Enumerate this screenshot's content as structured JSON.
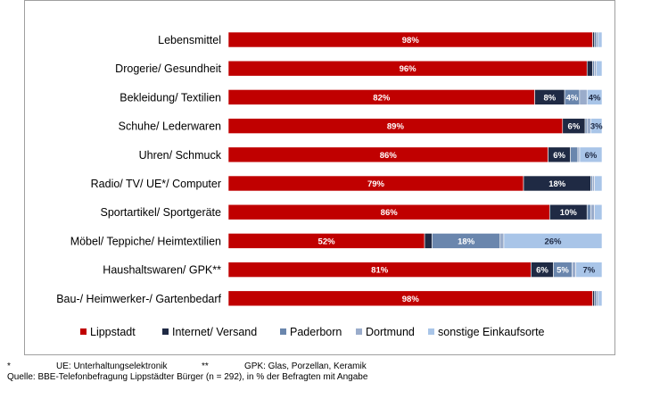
{
  "chart_data": {
    "type": "bar",
    "orientation": "horizontal",
    "stacked": true,
    "categories": [
      "Lebensmittel",
      "Drogerie/ Gesundheit",
      "Bekleidung/ Textilien",
      "Schuhe/ Lederwaren",
      "Uhren/ Schmuck",
      "Radio/ TV/ UE*/ Computer",
      "Sportartikel/ Sportgeräte",
      "Möbel/ Teppiche/ Heimtextilien",
      "Haushaltswaren/ GPK**",
      "Bau-/ Heimwerker-/ Gartenbedarf"
    ],
    "series": [
      {
        "name": "Lippstadt",
        "color": "#c00000",
        "values": [
          98,
          96,
          82,
          89,
          86,
          79,
          86,
          52,
          81,
          98
        ]
      },
      {
        "name": "Internet/ Versand",
        "color": "#1f2a44",
        "values": [
          0.5,
          1.5,
          8,
          6,
          6,
          18,
          10,
          2,
          6,
          0.5
        ]
      },
      {
        "name": "Paderborn",
        "color": "#6a86ad",
        "values": [
          0.5,
          0.5,
          4,
          0.5,
          2,
          0.5,
          1,
          18,
          5,
          0.5
        ]
      },
      {
        "name": "Dortmund",
        "color": "#9aaccb",
        "values": [
          0.5,
          0.5,
          2,
          1,
          0.5,
          0.5,
          1,
          1,
          1,
          0.5
        ]
      },
      {
        "name": "sonstige Einkaufsorte",
        "color": "#a9c5e8",
        "values": [
          1,
          1.5,
          4,
          3,
          6,
          2,
          2,
          26,
          7,
          1
        ]
      }
    ],
    "data_labels": [
      [
        "98%",
        "",
        "",
        "",
        ""
      ],
      [
        "96%",
        "",
        "",
        "",
        ""
      ],
      [
        "82%",
        "8%",
        "4%",
        "",
        "4%"
      ],
      [
        "89%",
        "6%",
        "",
        "",
        "3%"
      ],
      [
        "86%",
        "6%",
        "",
        "",
        "6%"
      ],
      [
        "79%",
        "18%",
        "",
        "",
        ""
      ],
      [
        "86%",
        "10%",
        "",
        "",
        ""
      ],
      [
        "52%",
        "",
        "18%",
        "",
        "26%"
      ],
      [
        "81%",
        "6%",
        "5%",
        "",
        "7%"
      ],
      [
        "98%",
        "",
        "",
        "",
        ""
      ]
    ],
    "xlim": [
      0,
      100
    ],
    "legend_position": "bottom",
    "grid": false
  },
  "footnotes": {
    "ue_mark": "*",
    "ue_text": "UE: Unterhaltungselektronik",
    "gpk_mark": "**",
    "gpk_text": "GPK: Glas, Porzellan, Keramik",
    "source": "Quelle: BBE-Telefonbefragung Lippstädter Bürger (n = 292), in % der Befragten mit Angabe"
  }
}
